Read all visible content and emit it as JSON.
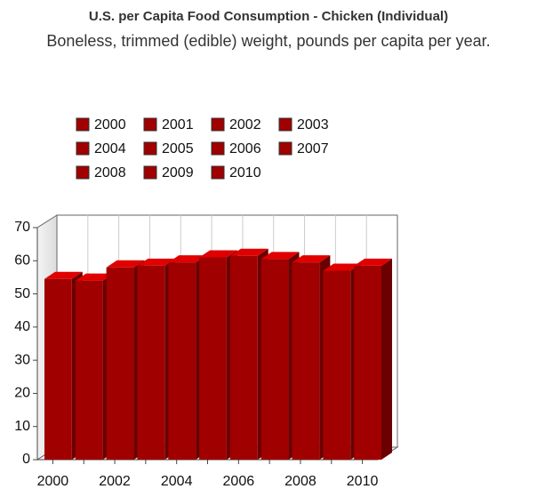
{
  "chart_data": {
    "type": "bar3d",
    "title": "U.S. per Capita Food Consumption - Chicken (Individual)",
    "subtitle": "Boneless, trimmed (edible) weight, pounds per capita per year.",
    "categories": [
      "2000",
      null,
      "2002",
      null,
      "2004",
      null,
      "2006",
      null,
      "2008",
      null,
      "2010"
    ],
    "series": [
      {
        "name": "2000",
        "color": "#a00000",
        "values": [
          54.5,
          null,
          null,
          null,
          null,
          null,
          null,
          null,
          null,
          null,
          null
        ]
      },
      {
        "name": "2001",
        "color": "#a00000",
        "values": [
          null,
          54,
          null,
          null,
          null,
          null,
          null,
          null,
          null,
          null,
          null
        ]
      },
      {
        "name": "2002",
        "color": "#a00000",
        "values": [
          null,
          null,
          58,
          null,
          null,
          null,
          null,
          null,
          null,
          null,
          null
        ]
      },
      {
        "name": "2003",
        "color": "#a00000",
        "values": [
          null,
          null,
          null,
          58.5,
          null,
          null,
          null,
          null,
          null,
          null,
          null
        ]
      },
      {
        "name": "2004",
        "color": "#a00000",
        "values": [
          null,
          null,
          null,
          null,
          59.5,
          null,
          null,
          null,
          null,
          null,
          null
        ]
      },
      {
        "name": "2005",
        "color": "#a00000",
        "values": [
          null,
          null,
          null,
          null,
          null,
          61,
          null,
          null,
          null,
          null,
          null
        ]
      },
      {
        "name": "2006",
        "color": "#a00000",
        "values": [
          null,
          null,
          null,
          null,
          null,
          null,
          61.5,
          null,
          null,
          null,
          null
        ]
      },
      {
        "name": "2007",
        "color": "#a00000",
        "values": [
          null,
          null,
          null,
          null,
          null,
          null,
          null,
          60.5,
          null,
          null,
          null
        ]
      },
      {
        "name": "2008",
        "color": "#a00000",
        "values": [
          null,
          null,
          null,
          null,
          null,
          null,
          null,
          null,
          59.5,
          null,
          null
        ]
      },
      {
        "name": "2009",
        "color": "#a00000",
        "values": [
          null,
          null,
          null,
          null,
          null,
          null,
          null,
          null,
          null,
          57,
          null
        ]
      },
      {
        "name": "2010",
        "color": "#a00000",
        "values": [
          null,
          null,
          null,
          null,
          null,
          null,
          null,
          null,
          null,
          null,
          58.5
        ]
      }
    ],
    "ylim": [
      0,
      70
    ],
    "yticks": [
      0,
      10,
      20,
      30,
      40,
      50,
      60,
      70
    ],
    "grid": true
  }
}
